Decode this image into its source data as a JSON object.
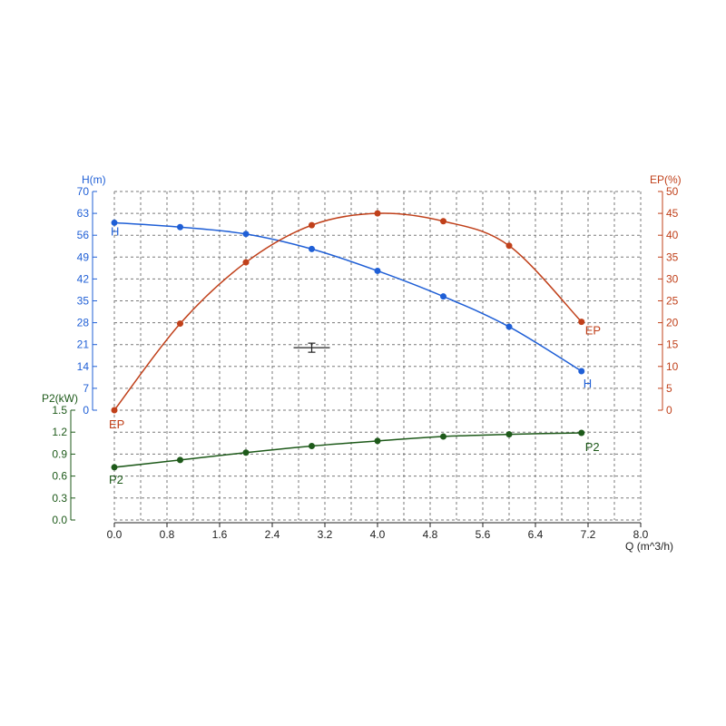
{
  "chart_data": {
    "type": "line",
    "x_axis": {
      "label": "Q (m^3/h)",
      "range": [
        0,
        8
      ],
      "ticks": [
        "0.0",
        "0.8",
        "1.6",
        "2.4",
        "3.2",
        "4.0",
        "4.8",
        "5.6",
        "6.4",
        "7.2",
        "8.0"
      ]
    },
    "y_axes": {
      "H": {
        "label": "H(m)",
        "side": "left",
        "range": [
          0,
          70
        ],
        "ticks": [
          "0",
          "7",
          "14",
          "21",
          "28",
          "35",
          "42",
          "49",
          "56",
          "63",
          "70"
        ],
        "color": "#1f5fd6"
      },
      "EP": {
        "label": "EP(%)",
        "side": "right",
        "range": [
          0,
          50
        ],
        "ticks": [
          "0",
          "5",
          "10",
          "15",
          "20",
          "25",
          "30",
          "35",
          "40",
          "45",
          "50"
        ],
        "color": "#c0401a"
      },
      "P2": {
        "label": "P2(kW)",
        "side": "left-lower",
        "range": [
          0,
          1.5
        ],
        "ticks": [
          "0.0",
          "0.3",
          "0.6",
          "0.9",
          "1.2",
          "1.5"
        ],
        "color": "#1e5a1a"
      }
    },
    "series": [
      {
        "name": "H",
        "axis": "H",
        "color": "#1f5fd6",
        "x": [
          0.0,
          1.0,
          2.0,
          3.0,
          4.0,
          5.0,
          6.0,
          7.1
        ],
        "y": [
          60,
          58.6,
          56.4,
          51.6,
          44.6,
          36.4,
          26.7,
          12.5
        ]
      },
      {
        "name": "EP",
        "axis": "EP",
        "color": "#c0401a",
        "x": [
          0.0,
          1.0,
          2.0,
          3.0,
          4.0,
          5.0,
          6.0,
          7.1
        ],
        "y": [
          0,
          19.8,
          33.8,
          42.3,
          45.0,
          43.2,
          37.6,
          20.2
        ]
      },
      {
        "name": "P2",
        "axis": "P2",
        "color": "#1e5a1a",
        "x": [
          0.0,
          1.0,
          2.0,
          3.0,
          4.0,
          5.0,
          6.0,
          7.1
        ],
        "y": [
          0.72,
          0.82,
          0.92,
          1.01,
          1.08,
          1.14,
          1.17,
          1.19
        ]
      }
    ],
    "grid": true,
    "grid_style": "dashed",
    "error_marker": {
      "x": 3.0,
      "y_H": 20,
      "color": "#222222"
    }
  }
}
